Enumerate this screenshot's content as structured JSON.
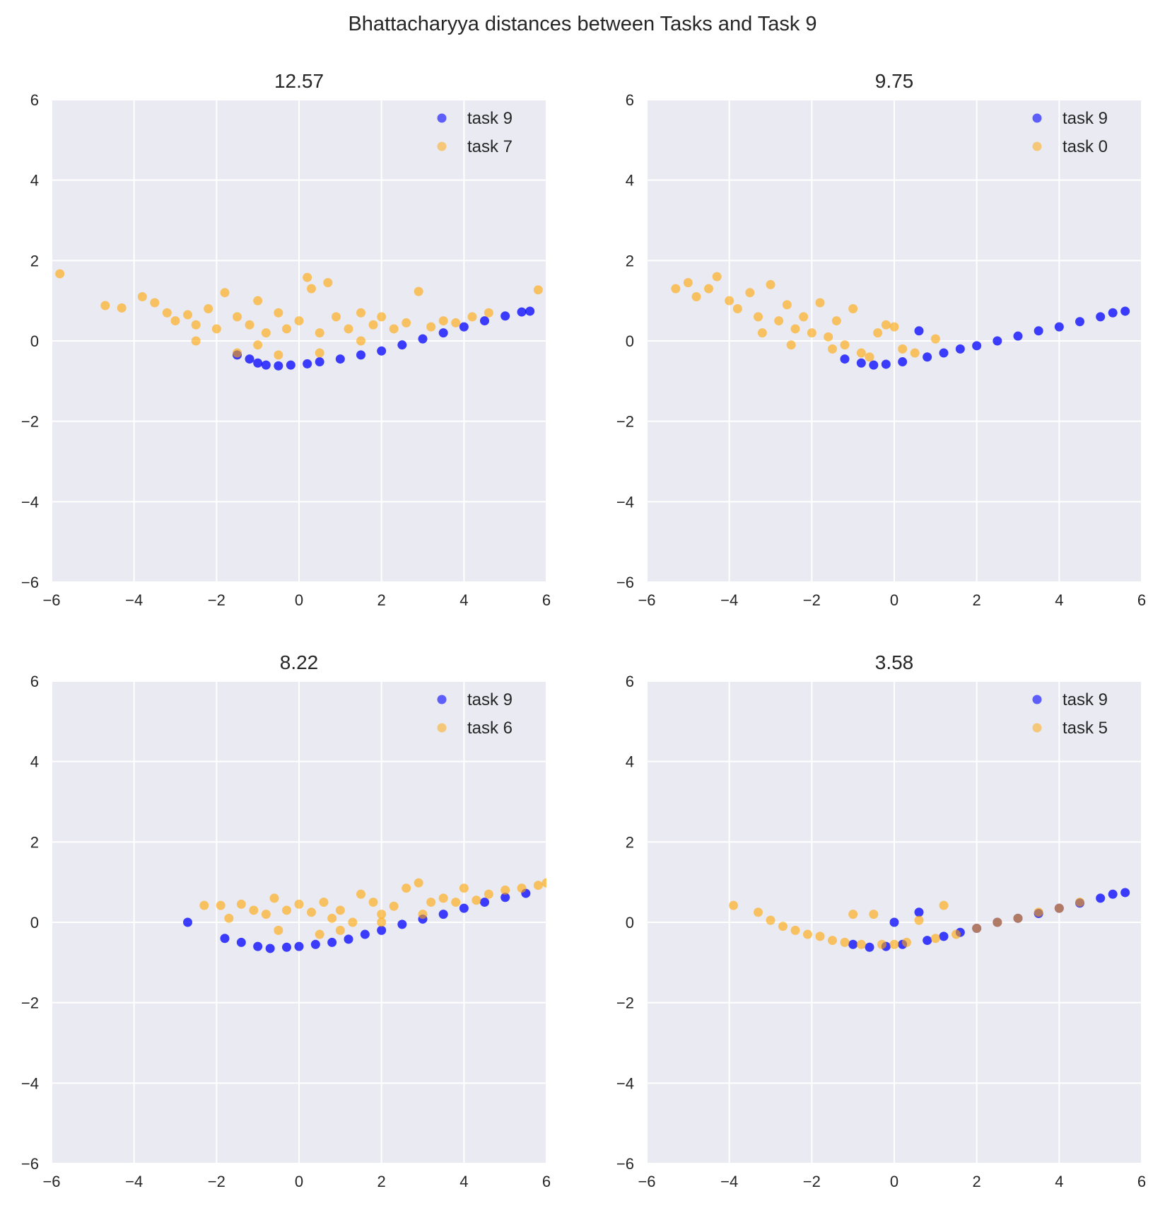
{
  "figure_title": "Bhattacharyya distances between Tasks and Task 9",
  "colors": {
    "axes_bg": "#eaeaf2",
    "grid": "#ffffff",
    "blue": "#0000ff",
    "orange": "#ffa500"
  },
  "chart_data": [
    {
      "type": "scatter",
      "title": "12.57",
      "xlim": [
        -6,
        6
      ],
      "ylim": [
        -6,
        6
      ],
      "xticks": [
        -6,
        -4,
        -2,
        0,
        2,
        4,
        6
      ],
      "yticks": [
        -6,
        -4,
        -2,
        0,
        2,
        4,
        6
      ],
      "grid": true,
      "legend": "top-right",
      "series": [
        {
          "name": "task 9",
          "color": "#0000ff",
          "points": [
            [
              -1.5,
              -0.35
            ],
            [
              -1.2,
              -0.45
            ],
            [
              -1.0,
              -0.55
            ],
            [
              -0.8,
              -0.6
            ],
            [
              -0.5,
              -0.62
            ],
            [
              -0.2,
              -0.6
            ],
            [
              0.2,
              -0.57
            ],
            [
              0.5,
              -0.52
            ],
            [
              1.0,
              -0.45
            ],
            [
              1.5,
              -0.35
            ],
            [
              2.0,
              -0.25
            ],
            [
              2.5,
              -0.1
            ],
            [
              3.0,
              0.05
            ],
            [
              3.5,
              0.2
            ],
            [
              4.0,
              0.35
            ],
            [
              4.5,
              0.5
            ],
            [
              5.0,
              0.62
            ],
            [
              5.4,
              0.72
            ],
            [
              5.6,
              0.74
            ]
          ]
        },
        {
          "name": "task 7",
          "color": "#ffa500",
          "points": [
            [
              -5.8,
              1.67
            ],
            [
              -4.7,
              0.88
            ],
            [
              -4.3,
              0.82
            ],
            [
              -3.8,
              1.1
            ],
            [
              -3.5,
              0.95
            ],
            [
              -3.2,
              0.7
            ],
            [
              -3.0,
              0.5
            ],
            [
              -2.7,
              0.65
            ],
            [
              -2.5,
              0.4
            ],
            [
              -2.2,
              0.8
            ],
            [
              -2.0,
              0.3
            ],
            [
              -1.8,
              1.2
            ],
            [
              -1.5,
              0.6
            ],
            [
              -1.2,
              0.4
            ],
            [
              -1.0,
              1.0
            ],
            [
              -0.8,
              0.2
            ],
            [
              -0.5,
              0.7
            ],
            [
              -0.3,
              0.3
            ],
            [
              0.0,
              0.5
            ],
            [
              0.2,
              1.58
            ],
            [
              0.3,
              1.3
            ],
            [
              0.5,
              0.2
            ],
            [
              0.7,
              1.45
            ],
            [
              0.9,
              0.6
            ],
            [
              1.2,
              0.3
            ],
            [
              1.5,
              0.7
            ],
            [
              1.8,
              0.4
            ],
            [
              2.0,
              0.6
            ],
            [
              2.3,
              0.3
            ],
            [
              2.6,
              0.45
            ],
            [
              2.9,
              1.23
            ],
            [
              3.2,
              0.35
            ],
            [
              3.5,
              0.5
            ],
            [
              3.8,
              0.45
            ],
            [
              4.2,
              0.6
            ],
            [
              4.6,
              0.7
            ],
            [
              5.8,
              1.27
            ],
            [
              -1.5,
              -0.3
            ],
            [
              -0.5,
              -0.35
            ],
            [
              0.5,
              -0.3
            ],
            [
              1.5,
              0.0
            ],
            [
              -2.5,
              0.0
            ],
            [
              -1.0,
              -0.1
            ]
          ]
        }
      ]
    },
    {
      "type": "scatter",
      "title": "9.75",
      "xlim": [
        -6,
        6
      ],
      "ylim": [
        -6,
        6
      ],
      "xticks": [
        -6,
        -4,
        -2,
        0,
        2,
        4,
        6
      ],
      "yticks": [
        -6,
        -4,
        -2,
        0,
        2,
        4,
        6
      ],
      "grid": true,
      "legend": "top-right",
      "series": [
        {
          "name": "task 9",
          "color": "#0000ff",
          "points": [
            [
              -1.2,
              -0.45
            ],
            [
              -0.8,
              -0.55
            ],
            [
              -0.5,
              -0.6
            ],
            [
              -0.2,
              -0.58
            ],
            [
              0.2,
              -0.52
            ],
            [
              0.6,
              0.25
            ],
            [
              0.8,
              -0.4
            ],
            [
              1.2,
              -0.3
            ],
            [
              1.6,
              -0.2
            ],
            [
              2.0,
              -0.12
            ],
            [
              2.5,
              0.0
            ],
            [
              3.0,
              0.12
            ],
            [
              3.5,
              0.25
            ],
            [
              4.0,
              0.35
            ],
            [
              4.5,
              0.48
            ],
            [
              5.0,
              0.6
            ],
            [
              5.3,
              0.7
            ],
            [
              5.6,
              0.74
            ]
          ]
        },
        {
          "name": "task 0",
          "color": "#ffa500",
          "points": [
            [
              -5.3,
              1.3
            ],
            [
              -5.0,
              1.45
            ],
            [
              -4.8,
              1.1
            ],
            [
              -4.5,
              1.3
            ],
            [
              -4.3,
              1.6
            ],
            [
              -4.0,
              1.0
            ],
            [
              -3.8,
              0.8
            ],
            [
              -3.5,
              1.2
            ],
            [
              -3.3,
              0.6
            ],
            [
              -3.0,
              1.4
            ],
            [
              -2.8,
              0.5
            ],
            [
              -2.6,
              0.9
            ],
            [
              -2.4,
              0.3
            ],
            [
              -2.2,
              0.6
            ],
            [
              -2.0,
              0.2
            ],
            [
              -1.8,
              0.95
            ],
            [
              -1.6,
              0.1
            ],
            [
              -1.4,
              0.5
            ],
            [
              -1.2,
              -0.1
            ],
            [
              -1.0,
              0.8
            ],
            [
              -0.8,
              -0.3
            ],
            [
              -0.6,
              -0.4
            ],
            [
              -0.4,
              0.2
            ],
            [
              -0.2,
              0.4
            ],
            [
              0.0,
              0.35
            ],
            [
              0.2,
              -0.2
            ],
            [
              0.5,
              -0.3
            ],
            [
              1.0,
              0.05
            ],
            [
              -3.2,
              0.2
            ],
            [
              -2.5,
              -0.1
            ],
            [
              -1.5,
              -0.2
            ]
          ]
        }
      ]
    },
    {
      "type": "scatter",
      "title": "8.22",
      "xlim": [
        -6,
        6
      ],
      "ylim": [
        -6,
        6
      ],
      "xticks": [
        -6,
        -4,
        -2,
        0,
        2,
        4,
        6
      ],
      "yticks": [
        -6,
        -4,
        -2,
        0,
        2,
        4,
        6
      ],
      "grid": true,
      "legend": "top-right",
      "series": [
        {
          "name": "task 9",
          "color": "#0000ff",
          "points": [
            [
              -2.7,
              0.0
            ],
            [
              -1.8,
              -0.4
            ],
            [
              -1.4,
              -0.5
            ],
            [
              -1.0,
              -0.6
            ],
            [
              -0.7,
              -0.65
            ],
            [
              -0.3,
              -0.62
            ],
            [
              0.0,
              -0.6
            ],
            [
              0.4,
              -0.55
            ],
            [
              0.8,
              -0.5
            ],
            [
              1.2,
              -0.42
            ],
            [
              1.6,
              -0.3
            ],
            [
              2.0,
              -0.2
            ],
            [
              2.5,
              -0.05
            ],
            [
              3.0,
              0.08
            ],
            [
              3.5,
              0.2
            ],
            [
              4.0,
              0.35
            ],
            [
              4.5,
              0.5
            ],
            [
              5.0,
              0.62
            ],
            [
              5.5,
              0.72
            ]
          ]
        },
        {
          "name": "task 6",
          "color": "#ffa500",
          "points": [
            [
              -2.3,
              0.42
            ],
            [
              -1.9,
              0.42
            ],
            [
              -1.7,
              0.1
            ],
            [
              -1.4,
              0.45
            ],
            [
              -1.1,
              0.3
            ],
            [
              -0.8,
              0.2
            ],
            [
              -0.6,
              0.6
            ],
            [
              -0.3,
              0.3
            ],
            [
              0.0,
              0.45
            ],
            [
              0.3,
              0.25
            ],
            [
              0.6,
              0.5
            ],
            [
              0.8,
              0.1
            ],
            [
              1.0,
              0.3
            ],
            [
              1.3,
              0.0
            ],
            [
              1.5,
              0.7
            ],
            [
              1.8,
              0.5
            ],
            [
              2.0,
              0.2
            ],
            [
              2.3,
              0.4
            ],
            [
              2.6,
              0.85
            ],
            [
              2.9,
              0.98
            ],
            [
              3.2,
              0.5
            ],
            [
              3.5,
              0.6
            ],
            [
              3.8,
              0.5
            ],
            [
              4.0,
              0.85
            ],
            [
              4.3,
              0.55
            ],
            [
              4.6,
              0.7
            ],
            [
              5.0,
              0.8
            ],
            [
              5.4,
              0.85
            ],
            [
              5.8,
              0.92
            ],
            [
              6.0,
              0.98
            ],
            [
              0.5,
              -0.3
            ],
            [
              1.0,
              -0.2
            ],
            [
              -0.5,
              -0.2
            ],
            [
              2.0,
              0.0
            ],
            [
              3.0,
              0.2
            ]
          ]
        }
      ]
    },
    {
      "type": "scatter",
      "title": "3.58",
      "xlim": [
        -6,
        6
      ],
      "ylim": [
        -6,
        6
      ],
      "xticks": [
        -6,
        -4,
        -2,
        0,
        2,
        4,
        6
      ],
      "yticks": [
        -6,
        -4,
        -2,
        0,
        2,
        4,
        6
      ],
      "grid": true,
      "legend": "top-right",
      "series": [
        {
          "name": "task 9",
          "color": "#0000ff",
          "points": [
            [
              -1.0,
              -0.55
            ],
            [
              -0.6,
              -0.62
            ],
            [
              -0.2,
              -0.6
            ],
            [
              0.0,
              0.0
            ],
            [
              0.2,
              -0.55
            ],
            [
              0.6,
              0.25
            ],
            [
              0.8,
              -0.45
            ],
            [
              1.2,
              -0.35
            ],
            [
              1.6,
              -0.25
            ],
            [
              2.0,
              -0.15
            ],
            [
              2.5,
              0.0
            ],
            [
              3.0,
              0.1
            ],
            [
              3.5,
              0.22
            ],
            [
              4.0,
              0.35
            ],
            [
              4.5,
              0.48
            ],
            [
              5.0,
              0.6
            ],
            [
              5.3,
              0.7
            ],
            [
              5.6,
              0.74
            ]
          ]
        },
        {
          "name": "task 5",
          "color": "#ffa500",
          "points": [
            [
              -3.9,
              0.42
            ],
            [
              -3.3,
              0.25
            ],
            [
              -3.0,
              0.05
            ],
            [
              -2.7,
              -0.1
            ],
            [
              -2.4,
              -0.2
            ],
            [
              -2.1,
              -0.3
            ],
            [
              -1.8,
              -0.35
            ],
            [
              -1.5,
              -0.45
            ],
            [
              -1.2,
              -0.5
            ],
            [
              -1.0,
              0.2
            ],
            [
              -0.8,
              -0.55
            ],
            [
              -0.5,
              0.2
            ],
            [
              -0.3,
              -0.55
            ],
            [
              0.0,
              -0.55
            ],
            [
              0.3,
              -0.5
            ],
            [
              0.6,
              0.05
            ],
            [
              1.0,
              -0.4
            ],
            [
              1.2,
              0.42
            ],
            [
              1.5,
              -0.3
            ],
            [
              2.0,
              -0.15
            ],
            [
              2.5,
              0.0
            ],
            [
              3.0,
              0.1
            ],
            [
              3.5,
              0.25
            ],
            [
              4.0,
              0.35
            ],
            [
              4.5,
              0.5
            ]
          ]
        }
      ]
    }
  ]
}
